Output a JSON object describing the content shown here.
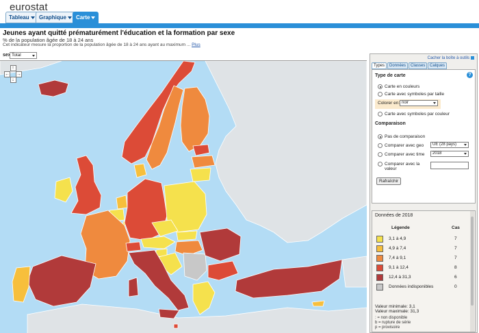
{
  "brand": "eurostat",
  "tabs": [
    {
      "label": "Tableau",
      "active": false
    },
    {
      "label": "Graphique",
      "active": false
    },
    {
      "label": "Carte",
      "active": true
    }
  ],
  "header": {
    "title": "Jeunes ayant quitté prématurément l'éducation et la formation par sexe",
    "subtitle": "% de la population âgée de 18 à 24 ans",
    "description": "Cet indicateur mesure la proportion de la population âgée de 18 à 24 ans ayant au maximum ...",
    "more_link": "Plus"
  },
  "filter": {
    "label": "sex",
    "value": "Total"
  },
  "panel": {
    "hide_link": "Cacher la boîte à outils",
    "tabs": [
      "Types",
      "Données",
      "Classes",
      "Calques"
    ],
    "map_type_title": "Type de carte",
    "map_types": [
      "Carte en couleurs",
      "Carte avec symboles par taille",
      "Carte avec symboles par couleur"
    ],
    "colorer_label": "Colorer en:",
    "colorer_value": "noir",
    "comparison_title": "Comparaison",
    "comparisons": [
      "Pas de comparaison",
      "Comparer avec geo",
      "Comparer avec time",
      "Comparer avec la valeur"
    ],
    "geo_value": "UE (28 pays)",
    "time_value": "2018",
    "refresh_label": "Rafraîchir"
  },
  "data_section": {
    "title": "Données de 2018",
    "legend_header": "Légende",
    "count_header": "Cas",
    "legend": [
      {
        "range": "3,1  à   4,9",
        "count": "7",
        "color": "#f5e14d"
      },
      {
        "range": "4,9  à   7,4",
        "count": "7",
        "color": "#f7bf3c"
      },
      {
        "range": "7,4  à   9,1",
        "count": "7",
        "color": "#ef8a3e"
      },
      {
        "range": "9,1  à  12,4",
        "count": "8",
        "color": "#dc4b37"
      },
      {
        "range": "12,4  à  31,3",
        "count": "6",
        "color": "#b13a3a"
      },
      {
        "range": "Données indisponibles",
        "count": "0",
        "color": "#c8c8c8"
      }
    ],
    "min_label": "Valeur minimale: 3,1",
    "max_label": "Valeur maximale: 31,3",
    "notes": [
      ": = non disponible",
      "b = rupture de série",
      "p = provisoire"
    ]
  },
  "map_colors": {
    "sea": "#b3dcf5",
    "non_eu": "#dfe3e6",
    "border": "#ffffff"
  }
}
